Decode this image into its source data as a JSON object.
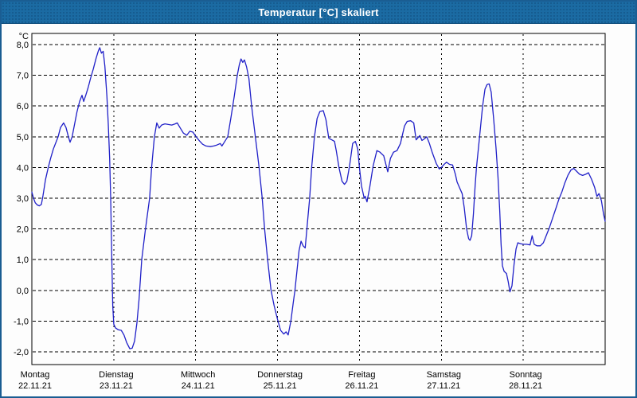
{
  "window": {
    "title": "Temperatur [°C] skaliert"
  },
  "colors": {
    "titlebar": "#1b6ba3",
    "window_border": "#1a5d92",
    "plot_frame": "#000000",
    "grid": "#000000",
    "line": "#2020c8",
    "background": "#ffffff"
  },
  "chart_data": {
    "type": "line",
    "title": "Temperatur [°C] skaliert",
    "unit_label": "°C",
    "xlabel": "",
    "ylabel": "°C",
    "ylim": [
      -2.0,
      8.0
    ],
    "xlim_hours": [
      0,
      168
    ],
    "grid": "dashed",
    "legend_position": "none",
    "ytick_values": [
      8,
      7,
      6,
      5,
      4,
      3,
      2,
      1,
      0,
      -1,
      -2
    ],
    "ytick_labels": [
      "8,0",
      "7,0",
      "6,0",
      "5,0",
      "4,0",
      "3,0",
      "2,0",
      "1,0",
      "0,0",
      "-1,0",
      "-2,0"
    ],
    "days": [
      {
        "name": "Montag",
        "date": "22.11.21"
      },
      {
        "name": "Dienstag",
        "date": "23.11.21"
      },
      {
        "name": "Mittwoch",
        "date": "24.11.21"
      },
      {
        "name": "Donnerstag",
        "date": "25.11.21"
      },
      {
        "name": "Freitag",
        "date": "26.11.21"
      },
      {
        "name": "Samstag",
        "date": "27.11.21"
      },
      {
        "name": "Sonntag",
        "date": "28.11.21"
      }
    ],
    "series": [
      {
        "name": "Temperatur",
        "color": "#2020c8",
        "points": [
          [
            0,
            3.2
          ],
          [
            0.5,
            3.0
          ],
          [
            1,
            2.85
          ],
          [
            1.6,
            2.78
          ],
          [
            2.2,
            2.75
          ],
          [
            2.8,
            2.8
          ],
          [
            3.3,
            3.1
          ],
          [
            4,
            3.6
          ],
          [
            4.8,
            4.0
          ],
          [
            5.5,
            4.3
          ],
          [
            6.3,
            4.6
          ],
          [
            7,
            4.8
          ],
          [
            7.7,
            5.0
          ],
          [
            8.4,
            5.3
          ],
          [
            9.3,
            5.45
          ],
          [
            10,
            5.3
          ],
          [
            10.7,
            5.0
          ],
          [
            11.2,
            4.82
          ],
          [
            11.8,
            5.0
          ],
          [
            12.5,
            5.4
          ],
          [
            13.2,
            5.8
          ],
          [
            14,
            6.15
          ],
          [
            14.7,
            6.35
          ],
          [
            15.2,
            6.15
          ],
          [
            15.8,
            6.35
          ],
          [
            16.5,
            6.6
          ],
          [
            17.2,
            6.9
          ],
          [
            18,
            7.2
          ],
          [
            18.8,
            7.55
          ],
          [
            19.5,
            7.8
          ],
          [
            19.9,
            7.9
          ],
          [
            20.4,
            7.72
          ],
          [
            20.9,
            7.78
          ],
          [
            21.4,
            7.3
          ],
          [
            22,
            6.3
          ],
          [
            22.4,
            5.4
          ],
          [
            22.8,
            4.3
          ],
          [
            23.1,
            3.0
          ],
          [
            23.4,
            1.2
          ],
          [
            23.7,
            -0.5
          ],
          [
            24,
            -1.1
          ],
          [
            24.5,
            -1.22
          ],
          [
            25.3,
            -1.28
          ],
          [
            26.2,
            -1.3
          ],
          [
            27,
            -1.45
          ],
          [
            27.8,
            -1.7
          ],
          [
            28.7,
            -1.9
          ],
          [
            29.4,
            -1.88
          ],
          [
            30.1,
            -1.65
          ],
          [
            30.8,
            -1.05
          ],
          [
            31.4,
            -0.3
          ],
          [
            32.2,
            1.0
          ],
          [
            33.3,
            2.0
          ],
          [
            34.5,
            3.0
          ],
          [
            35.1,
            4.0
          ],
          [
            35.9,
            5.0
          ],
          [
            36.6,
            5.45
          ],
          [
            37.3,
            5.28
          ],
          [
            38,
            5.38
          ],
          [
            39,
            5.42
          ],
          [
            40,
            5.4
          ],
          [
            41,
            5.38
          ],
          [
            42,
            5.42
          ],
          [
            42.6,
            5.45
          ],
          [
            43.4,
            5.3
          ],
          [
            44.4,
            5.12
          ],
          [
            45.4,
            5.05
          ],
          [
            46.3,
            5.18
          ],
          [
            47.2,
            5.15
          ],
          [
            48,
            5.02
          ],
          [
            49,
            4.88
          ],
          [
            50,
            4.76
          ],
          [
            51,
            4.7
          ],
          [
            52.3,
            4.68
          ],
          [
            53.3,
            4.7
          ],
          [
            54.2,
            4.73
          ],
          [
            55.2,
            4.78
          ],
          [
            55.7,
            4.7
          ],
          [
            56.4,
            4.82
          ],
          [
            57.4,
            5.0
          ],
          [
            58.3,
            5.6
          ],
          [
            59.3,
            6.3
          ],
          [
            60.2,
            7.0
          ],
          [
            60.8,
            7.35
          ],
          [
            61.3,
            7.53
          ],
          [
            61.8,
            7.42
          ],
          [
            62.3,
            7.5
          ],
          [
            62.9,
            7.28
          ],
          [
            63.6,
            6.9
          ],
          [
            64.4,
            6.0
          ],
          [
            65.5,
            5.0
          ],
          [
            66.6,
            4.0
          ],
          [
            67.5,
            3.0
          ],
          [
            68.2,
            2.0
          ],
          [
            69.1,
            1.0
          ],
          [
            70.1,
            0.0
          ],
          [
            71,
            -0.5
          ],
          [
            72,
            -0.95
          ],
          [
            72.9,
            -1.3
          ],
          [
            73.8,
            -1.42
          ],
          [
            74.5,
            -1.35
          ],
          [
            75.1,
            -1.45
          ],
          [
            75.9,
            -1.0
          ],
          [
            76.6,
            -0.4
          ],
          [
            77.1,
            0.0
          ],
          [
            77.8,
            0.75
          ],
          [
            78.3,
            1.3
          ],
          [
            78.9,
            1.6
          ],
          [
            79.5,
            1.45
          ],
          [
            80.1,
            1.38
          ],
          [
            80.6,
            2.0
          ],
          [
            81.4,
            3.0
          ],
          [
            82,
            4.0
          ],
          [
            82.8,
            5.0
          ],
          [
            83.6,
            5.6
          ],
          [
            84.4,
            5.82
          ],
          [
            85.4,
            5.85
          ],
          [
            86.2,
            5.55
          ],
          [
            87,
            4.95
          ],
          [
            87.9,
            4.9
          ],
          [
            88.7,
            4.85
          ],
          [
            89.2,
            4.55
          ],
          [
            90,
            4.0
          ],
          [
            90.9,
            3.55
          ],
          [
            91.6,
            3.45
          ],
          [
            92.3,
            3.55
          ],
          [
            93.1,
            4.05
          ],
          [
            94,
            4.78
          ],
          [
            94.8,
            4.85
          ],
          [
            95.5,
            4.6
          ],
          [
            96,
            4.0
          ],
          [
            96.6,
            3.4
          ],
          [
            97.4,
            3.0
          ],
          [
            97.7,
            3.06
          ],
          [
            98.2,
            2.88
          ],
          [
            99,
            3.35
          ],
          [
            100,
            4.05
          ],
          [
            101.1,
            4.55
          ],
          [
            102,
            4.5
          ],
          [
            103.1,
            4.38
          ],
          [
            104.3,
            3.86
          ],
          [
            105.1,
            4.3
          ],
          [
            106,
            4.5
          ],
          [
            107,
            4.55
          ],
          [
            108,
            4.78
          ],
          [
            109.2,
            5.35
          ],
          [
            110,
            5.5
          ],
          [
            111,
            5.52
          ],
          [
            111.9,
            5.45
          ],
          [
            112.6,
            4.9
          ],
          [
            113.7,
            5.04
          ],
          [
            114.3,
            4.88
          ],
          [
            115,
            4.93
          ],
          [
            115.7,
            5.0
          ],
          [
            116.5,
            4.78
          ],
          [
            117.3,
            4.5
          ],
          [
            118.5,
            4.13
          ],
          [
            119.4,
            3.95
          ],
          [
            120,
            4.0
          ],
          [
            120.7,
            4.09
          ],
          [
            121.5,
            4.17
          ],
          [
            122.4,
            4.1
          ],
          [
            123.3,
            4.08
          ],
          [
            124.1,
            3.78
          ],
          [
            124.6,
            3.53
          ],
          [
            125.3,
            3.35
          ],
          [
            126.1,
            3.15
          ],
          [
            126.7,
            2.7
          ],
          [
            127.4,
            2.0
          ],
          [
            128,
            1.68
          ],
          [
            128.4,
            1.63
          ],
          [
            128.9,
            1.78
          ],
          [
            129.4,
            2.5
          ],
          [
            129.9,
            3.4
          ],
          [
            130.3,
            4.0
          ],
          [
            131.2,
            5.0
          ],
          [
            132.1,
            6.0
          ],
          [
            132.8,
            6.55
          ],
          [
            133.4,
            6.7
          ],
          [
            134,
            6.72
          ],
          [
            134.6,
            6.45
          ],
          [
            135.3,
            5.6
          ],
          [
            136,
            4.65
          ],
          [
            136.6,
            3.7
          ],
          [
            137.1,
            2.6
          ],
          [
            137.5,
            1.5
          ],
          [
            137.9,
            0.8
          ],
          [
            138.4,
            0.62
          ],
          [
            139.1,
            0.55
          ],
          [
            139.6,
            0.28
          ],
          [
            140.1,
            -0.05
          ],
          [
            140.7,
            0.15
          ],
          [
            141.3,
            0.85
          ],
          [
            141.9,
            1.35
          ],
          [
            142.4,
            1.55
          ],
          [
            143.2,
            1.52
          ],
          [
            144,
            1.5
          ],
          [
            145,
            1.5
          ],
          [
            146,
            1.48
          ],
          [
            146.6,
            1.78
          ],
          [
            147.2,
            1.5
          ],
          [
            148,
            1.45
          ],
          [
            149,
            1.45
          ],
          [
            149.9,
            1.55
          ],
          [
            150.8,
            1.8
          ],
          [
            151.7,
            2.05
          ],
          [
            152.6,
            2.35
          ],
          [
            153.5,
            2.65
          ],
          [
            154.4,
            2.95
          ],
          [
            155.3,
            3.2
          ],
          [
            156.2,
            3.5
          ],
          [
            157.1,
            3.75
          ],
          [
            158,
            3.92
          ],
          [
            158.8,
            3.97
          ],
          [
            159.6,
            3.88
          ],
          [
            160.5,
            3.78
          ],
          [
            161.4,
            3.74
          ],
          [
            162.3,
            3.78
          ],
          [
            163.1,
            3.83
          ],
          [
            164,
            3.62
          ],
          [
            164.9,
            3.36
          ],
          [
            165.6,
            3.06
          ],
          [
            166.2,
            3.15
          ],
          [
            166.9,
            2.92
          ],
          [
            167.5,
            2.5
          ],
          [
            168,
            2.25
          ]
        ]
      }
    ]
  }
}
